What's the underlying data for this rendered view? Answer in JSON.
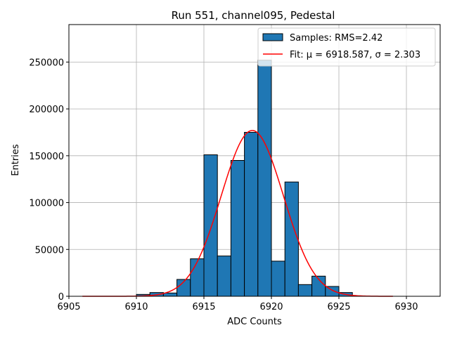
{
  "chart_data": {
    "type": "bar",
    "title": "Run 551, channel095, Pedestal",
    "xlabel": "ADC Counts",
    "ylabel": "Entries",
    "xlim": [
      6905,
      6932.5
    ],
    "ylim": [
      0,
      290000
    ],
    "xticks": [
      6905,
      6910,
      6915,
      6920,
      6925,
      6930
    ],
    "yticks": [
      0,
      50000,
      100000,
      150000,
      200000,
      250000
    ],
    "grid": true,
    "legend_placement": "upper-right",
    "bin_width": 1,
    "bins": [
      {
        "x0": 6910,
        "value": 2000
      },
      {
        "x0": 6911,
        "value": 4000
      },
      {
        "x0": 6912,
        "value": 3500
      },
      {
        "x0": 6913,
        "value": 18000
      },
      {
        "x0": 6914,
        "value": 40000
      },
      {
        "x0": 6915,
        "value": 151000
      },
      {
        "x0": 6916,
        "value": 43000
      },
      {
        "x0": 6917,
        "value": 145000
      },
      {
        "x0": 6918,
        "value": 175000
      },
      {
        "x0": 6919,
        "value": 252000
      },
      {
        "x0": 6920,
        "value": 37500
      },
      {
        "x0": 6921,
        "value": 122000
      },
      {
        "x0": 6922,
        "value": 12500
      },
      {
        "x0": 6923,
        "value": 21500
      },
      {
        "x0": 6924,
        "value": 10500
      },
      {
        "x0": 6925,
        "value": 4000
      }
    ],
    "fit": {
      "mu": 6918.587,
      "sigma": 2.303,
      "amplitude": 177000,
      "x_range": [
        6906,
        6929
      ]
    },
    "legend": {
      "samples_label": "Samples: RMS=2.42",
      "fit_label": "Fit: μ = 6918.587, σ = 2.303"
    },
    "colors": {
      "bar_fill": "#1f77b4",
      "bar_edge": "#000000",
      "fit_line": "#ff0000",
      "grid": "#b0b0b0"
    }
  }
}
